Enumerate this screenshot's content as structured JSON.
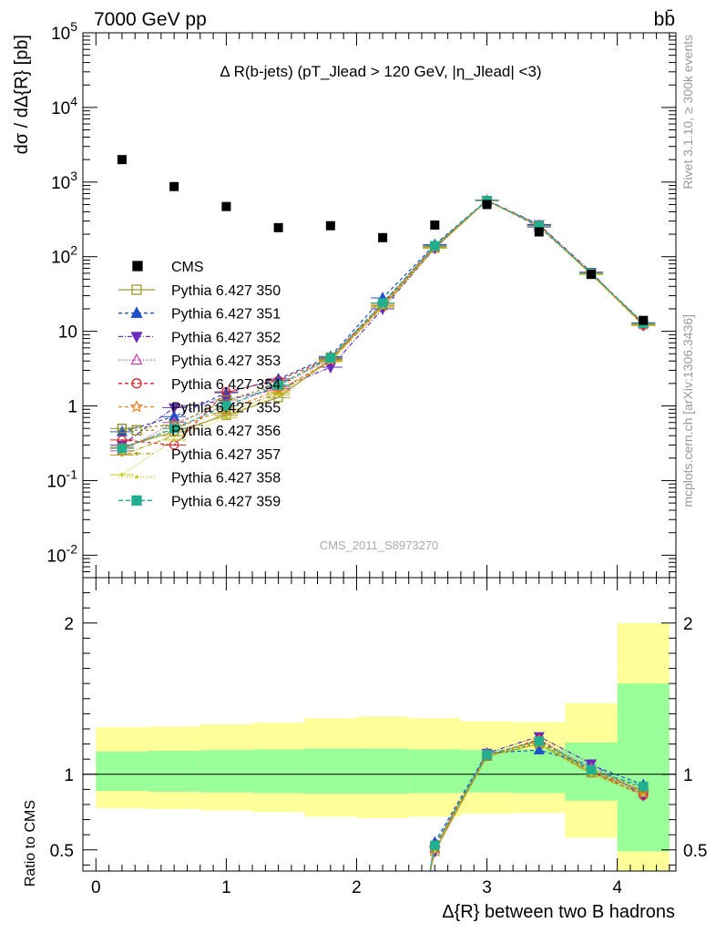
{
  "header": {
    "left": "7000 GeV pp",
    "right": "bb̄"
  },
  "side_labels": {
    "top": "Rivet 3.1.10, ≥ 300k events",
    "bottom": "mcplots.cern.ch [arXiv:1306.3436]"
  },
  "watermark": "CMS_2011_S8973270",
  "colors": {
    "band_inner": "#99ff99",
    "band_outer": "#ffff99"
  },
  "chart_data": [
    {
      "type": "scatter",
      "title": "Δ R(b-jets) (pT_Jlead > 120 GeV, |η_Jlead| <3)",
      "ylabel": "dσ / dΔ{R} [pb]",
      "yscale": "log",
      "ylim": [
        0.005,
        100000
      ],
      "xlim": [
        -0.1,
        4.45
      ],
      "y_tick_labels": [
        "10^5",
        "10^4",
        "10^3",
        "10^2",
        "10",
        "1",
        "10^-1",
        "10^-2"
      ],
      "x": [
        0.2,
        0.6,
        1.0,
        1.4,
        1.8,
        2.2,
        2.6,
        3.0,
        3.4,
        3.8,
        4.2
      ],
      "data": {
        "name": "CMS",
        "values": [
          2000,
          870,
          470,
          245,
          260,
          180,
          265,
          500,
          215,
          58,
          14
        ]
      },
      "series": [
        {
          "name": "Pythia 6.427 350",
          "color": "#a09a30",
          "marker": "square-open",
          "dash": "solid",
          "values": [
            0.28,
            0.45,
            0.75,
            1.3,
            4.2,
            22,
            130,
            560,
            260,
            58,
            12.5
          ]
        },
        {
          "name": "Pythia 6.427 351",
          "color": "#1e4fcc",
          "marker": "triangle-up",
          "dash": "4,3",
          "values": [
            0.45,
            0.72,
            1.5,
            2.3,
            4.6,
            28,
            145,
            570,
            250,
            60,
            13
          ]
        },
        {
          "name": "Pythia 6.427 352",
          "color": "#6a2bc0",
          "marker": "triangle-down",
          "dash": "5,2,1,2",
          "values": [
            0.3,
            0.95,
            1.2,
            1.7,
            3.3,
            20,
            130,
            570,
            270,
            62,
            12
          ]
        },
        {
          "name": "Pythia 6.427 353",
          "color": "#cc44aa",
          "marker": "triangle-open",
          "dash": "1,2",
          "values": [
            0.25,
            0.6,
            1.0,
            1.8,
            4.3,
            23,
            135,
            560,
            265,
            60,
            12.5
          ]
        },
        {
          "name": "Pythia 6.427 354",
          "color": "#e0202a",
          "marker": "circle-open",
          "dash": "4,3",
          "values": [
            0.35,
            0.3,
            1.55,
            2.2,
            4.4,
            24,
            140,
            560,
            265,
            59,
            12
          ]
        },
        {
          "name": "Pythia 6.427 355",
          "color": "#f08020",
          "marker": "star-open",
          "dash": "4,3",
          "values": [
            0.27,
            0.5,
            0.9,
            1.6,
            4.1,
            22,
            135,
            565,
            262,
            60,
            12.3
          ]
        },
        {
          "name": "Pythia 6.427 356",
          "color": "#8a8a20",
          "marker": "square-open",
          "dash": "3,3",
          "values": [
            0.5,
            0.55,
            1.2,
            1.9,
            4.5,
            23,
            138,
            560,
            260,
            59,
            12.8
          ]
        },
        {
          "name": "Pythia 6.427 357",
          "color": "#b8a020",
          "marker": "dot",
          "dash": "5,2,1,2",
          "values": [
            0.22,
            0.4,
            0.8,
            1.5,
            4.0,
            21,
            132,
            562,
            258,
            58,
            12.2
          ]
        },
        {
          "name": "Pythia 6.427 358",
          "color": "#c8c820",
          "marker": "dot",
          "dash": "1,2",
          "values": [
            0.12,
            0.35,
            0.7,
            1.4,
            3.9,
            21,
            130,
            560,
            258,
            58,
            12
          ]
        },
        {
          "name": "Pythia 6.427 359",
          "color": "#20b090",
          "marker": "square",
          "dash": "5,3",
          "values": [
            0.27,
            0.5,
            1.0,
            1.9,
            4.4,
            24,
            140,
            565,
            262,
            60,
            12.8
          ]
        }
      ]
    },
    {
      "type": "line",
      "ylabel": "Ratio to CMS",
      "xlabel": "Δ{R} between two B hadrons",
      "ylim": [
        0.36,
        2.3
      ],
      "xlim": [
        -0.1,
        4.45
      ],
      "y_ticks": [
        0.5,
        1,
        2
      ],
      "x_ticks": [
        0,
        1,
        2,
        3,
        4
      ],
      "bands": {
        "x_edges": [
          0.0,
          0.4,
          0.8,
          1.2,
          1.6,
          2.0,
          2.4,
          2.8,
          3.2,
          3.6,
          4.0,
          4.4
        ],
        "inner": [
          [
            0.89,
            1.15
          ],
          [
            0.885,
            1.155
          ],
          [
            0.88,
            1.16
          ],
          [
            0.875,
            1.165
          ],
          [
            0.87,
            1.17
          ],
          [
            0.87,
            1.17
          ],
          [
            0.875,
            1.165
          ],
          [
            0.88,
            1.16
          ],
          [
            0.875,
            1.165
          ],
          [
            0.825,
            1.21
          ],
          [
            0.49,
            1.6
          ]
        ],
        "outer": [
          [
            0.775,
            1.31
          ],
          [
            0.77,
            1.315
          ],
          [
            0.76,
            1.33
          ],
          [
            0.75,
            1.34
          ],
          [
            0.72,
            1.37
          ],
          [
            0.71,
            1.38
          ],
          [
            0.72,
            1.37
          ],
          [
            0.74,
            1.35
          ],
          [
            0.745,
            1.345
          ],
          [
            0.58,
            1.47
          ],
          [
            0.3,
            2.0
          ]
        ]
      },
      "reference_line": 1,
      "x": [
        2.6,
        3.0,
        3.4,
        3.8,
        4.2
      ],
      "series_values": [
        [
          0.49,
          1.12,
          1.2,
          1.01,
          0.89
        ],
        [
          0.55,
          1.14,
          1.16,
          1.06,
          0.93
        ],
        [
          0.49,
          1.14,
          1.25,
          1.07,
          0.86
        ],
        [
          0.51,
          1.12,
          1.23,
          1.04,
          0.89
        ],
        [
          0.53,
          1.12,
          1.23,
          1.02,
          0.86
        ],
        [
          0.51,
          1.13,
          1.22,
          1.03,
          0.88
        ],
        [
          0.52,
          1.12,
          1.21,
          1.02,
          0.91
        ],
        [
          0.5,
          1.12,
          1.2,
          1.0,
          0.87
        ],
        [
          0.49,
          1.12,
          1.2,
          1.0,
          0.86
        ],
        [
          0.53,
          1.13,
          1.22,
          1.03,
          0.92
        ]
      ]
    }
  ]
}
